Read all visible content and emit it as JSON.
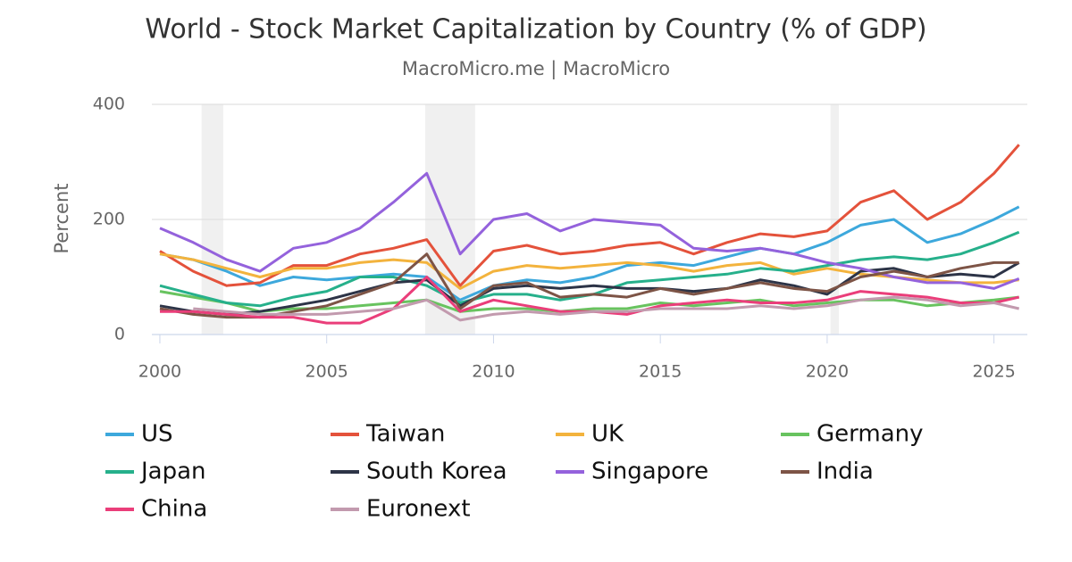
{
  "chart_data": {
    "type": "line",
    "title": "World - Stock Market Capitalization by Country (% of GDP)",
    "subtitle": "MacroMicro.me | MacroMicro",
    "y_label": "Percent",
    "x": [
      2000,
      2001,
      2002,
      2003,
      2004,
      2005,
      2006,
      2007,
      2008,
      2009,
      2010,
      2011,
      2012,
      2013,
      2014,
      2015,
      2016,
      2017,
      2018,
      2019,
      2020,
      2021,
      2022,
      2023,
      2024,
      2025,
      2025.75
    ],
    "xlim": [
      1999.76,
      2026
    ],
    "xticks": [
      2000,
      2005,
      2010,
      2015,
      2020,
      2025
    ],
    "ylim": [
      0,
      400
    ],
    "yticks": [
      0,
      200,
      400
    ],
    "grid": true,
    "shaded_periods": [
      [
        2001.25,
        2001.9
      ],
      [
        2007.95,
        2009.45
      ],
      [
        2020.1,
        2020.35
      ]
    ],
    "series": [
      {
        "name": "US",
        "color": "#3da8dc",
        "values": [
          140,
          130,
          110,
          85,
          100,
          95,
          100,
          105,
          100,
          60,
          85,
          95,
          90,
          100,
          120,
          125,
          120,
          135,
          150,
          140,
          160,
          190,
          200,
          160,
          175,
          200,
          222
        ]
      },
      {
        "name": "Taiwan",
        "color": "#e4523b",
        "values": [
          145,
          110,
          85,
          90,
          120,
          120,
          140,
          150,
          165,
          85,
          145,
          155,
          140,
          145,
          155,
          160,
          140,
          160,
          175,
          170,
          180,
          230,
          250,
          200,
          230,
          280,
          330
        ]
      },
      {
        "name": "UK",
        "color": "#f3b33d",
        "values": [
          140,
          130,
          115,
          100,
          115,
          115,
          125,
          130,
          125,
          80,
          110,
          120,
          115,
          120,
          125,
          120,
          110,
          120,
          125,
          105,
          115,
          105,
          100,
          95,
          90,
          90,
          95
        ]
      },
      {
        "name": "Germany",
        "color": "#68c35f",
        "values": [
          75,
          65,
          55,
          40,
          45,
          45,
          50,
          55,
          60,
          40,
          45,
          45,
          40,
          45,
          45,
          55,
          50,
          55,
          60,
          50,
          55,
          60,
          60,
          50,
          55,
          60,
          65
        ]
      },
      {
        "name": "Japan",
        "color": "#26b08b",
        "values": [
          85,
          70,
          55,
          50,
          65,
          75,
          100,
          100,
          85,
          55,
          70,
          70,
          60,
          70,
          90,
          95,
          100,
          105,
          115,
          110,
          120,
          130,
          135,
          130,
          140,
          160,
          178
        ]
      },
      {
        "name": "South Korea",
        "color": "#2d3447",
        "values": [
          50,
          40,
          35,
          40,
          50,
          60,
          75,
          90,
          95,
          50,
          80,
          85,
          80,
          85,
          80,
          80,
          75,
          80,
          95,
          85,
          70,
          110,
          115,
          100,
          105,
          100,
          125
        ]
      },
      {
        "name": "Singapore",
        "color": "#9462dc",
        "values": [
          185,
          160,
          130,
          110,
          150,
          160,
          185,
          230,
          280,
          140,
          200,
          210,
          180,
          200,
          195,
          190,
          150,
          145,
          150,
          140,
          125,
          115,
          100,
          90,
          90,
          80,
          97
        ]
      },
      {
        "name": "India",
        "color": "#7d5446",
        "values": [
          45,
          35,
          30,
          30,
          40,
          50,
          70,
          90,
          140,
          45,
          85,
          90,
          65,
          70,
          65,
          80,
          70,
          80,
          90,
          80,
          75,
          100,
          110,
          100,
          115,
          125,
          125
        ]
      },
      {
        "name": "China",
        "color": "#ea3e7a",
        "values": [
          40,
          40,
          35,
          30,
          30,
          20,
          20,
          45,
          100,
          40,
          60,
          50,
          40,
          40,
          35,
          50,
          55,
          60,
          55,
          55,
          60,
          75,
          70,
          65,
          55,
          55,
          65
        ]
      },
      {
        "name": "Euronext",
        "color": "#c29aae",
        "values": [
          null,
          45,
          40,
          35,
          35,
          35,
          40,
          45,
          60,
          25,
          35,
          40,
          35,
          40,
          40,
          45,
          45,
          45,
          50,
          45,
          50,
          60,
          65,
          60,
          50,
          55,
          45
        ]
      }
    ]
  }
}
